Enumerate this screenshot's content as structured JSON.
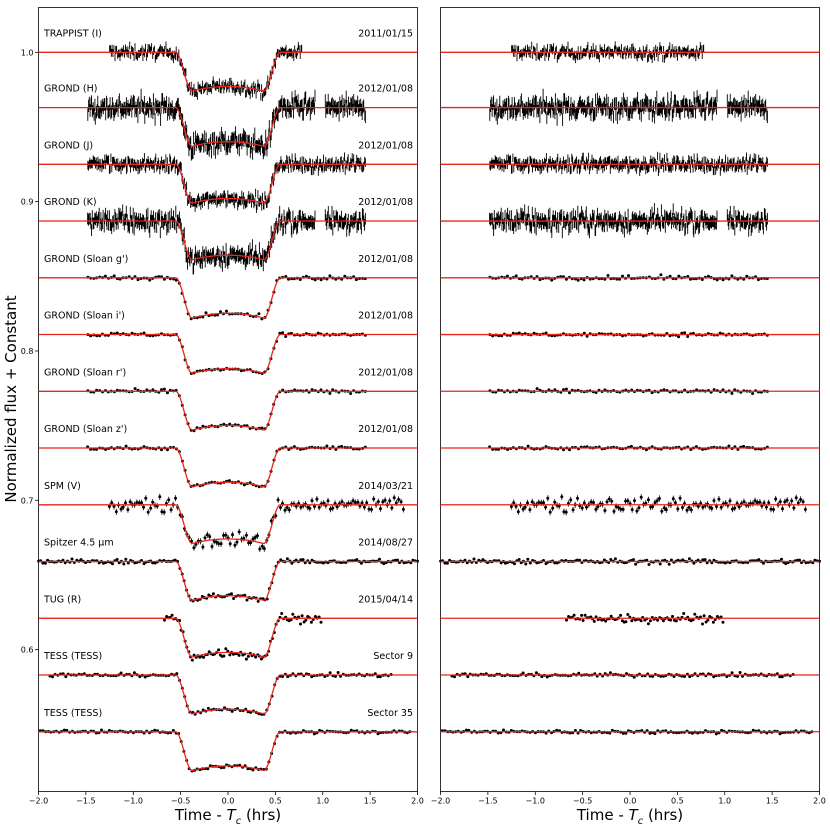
{
  "figure": {
    "ylabel": "Normalized flux + Constant",
    "xlabel_left": "Time - T_c (hrs)",
    "xlabel_right": "Time - T_c (hrs)"
  },
  "chart_data": {
    "type": "scatter",
    "description_scale": "x in hours relative to transit center; y is normalized flux with a constant offset per light curve",
    "xlim": [
      -2.0,
      2.0
    ],
    "ylim": [
      0.505,
      1.03
    ],
    "xticks": [
      -2.0,
      -1.5,
      -1.0,
      -0.5,
      0.0,
      0.5,
      1.0,
      1.5,
      2.0
    ],
    "xtick_labels": [
      "−2.0",
      "−1.5",
      "−1.0",
      "−0.5",
      "0.0",
      "0.5",
      "1.0",
      "1.5",
      "2.0"
    ],
    "yticks": [
      1.0,
      0.9,
      0.8,
      0.7,
      0.6
    ],
    "ytick_labels": [
      "1.0",
      "0.9",
      "0.8",
      "0.7",
      "0.6"
    ],
    "grid": false,
    "panels": [
      "light curves with transit model",
      "residuals"
    ],
    "transit": {
      "half_duration_hrs": 0.55,
      "ingress_hrs": 0.17
    },
    "light_curves": [
      {
        "name": "TRAPPIST (I)",
        "date": "2011/01/15",
        "baseline": 1.0,
        "depth": 0.026,
        "x_range": [
          -1.25,
          0.78
        ],
        "n_points": 220,
        "noise": 0.002,
        "style": "dense"
      },
      {
        "name": "GROND (H)",
        "date": "2012/01/08",
        "baseline": 0.963,
        "depth": 0.026,
        "x_range": [
          -1.48,
          1.45
        ],
        "n_points": 360,
        "noise": 0.0032,
        "gap": [
          0.92,
          1.02
        ],
        "style": "dense"
      },
      {
        "name": "GROND (J)",
        "date": "2012/01/08",
        "baseline": 0.925,
        "depth": 0.026,
        "x_range": [
          -1.48,
          1.45
        ],
        "n_points": 360,
        "noise": 0.0022,
        "style": "dense"
      },
      {
        "name": "GROND (K)",
        "date": "2012/01/08",
        "baseline": 0.887,
        "depth": 0.026,
        "x_range": [
          -1.48,
          1.45
        ],
        "n_points": 360,
        "noise": 0.003,
        "gap": [
          0.92,
          1.02
        ],
        "style": "dense"
      },
      {
        "name": "GROND (Sloan g')",
        "date": "2012/01/08",
        "baseline": 0.849,
        "depth": 0.027,
        "x_range": [
          -1.48,
          1.45
        ],
        "n_points": 95,
        "noise": 0.0007,
        "style": "dots"
      },
      {
        "name": "GROND (Sloan i')",
        "date": "2012/01/08",
        "baseline": 0.811,
        "depth": 0.026,
        "x_range": [
          -1.48,
          1.45
        ],
        "n_points": 95,
        "noise": 0.0006,
        "style": "dots"
      },
      {
        "name": "GROND (Sloan r')",
        "date": "2012/01/08",
        "baseline": 0.773,
        "depth": 0.026,
        "x_range": [
          -1.48,
          1.45
        ],
        "n_points": 95,
        "noise": 0.0006,
        "style": "dots"
      },
      {
        "name": "GROND (Sloan z')",
        "date": "2012/01/08",
        "baseline": 0.735,
        "depth": 0.026,
        "x_range": [
          -1.48,
          1.45
        ],
        "n_points": 95,
        "noise": 0.0006,
        "style": "dots"
      },
      {
        "name": "SPM (V)",
        "date": "2014/03/21",
        "baseline": 0.697,
        "depth": 0.026,
        "x_range": [
          -1.25,
          1.85
        ],
        "n_points": 130,
        "noise": 0.0026,
        "style": "errorbars"
      },
      {
        "name": "Spitzer 4.5 μm",
        "date": "2014/08/27",
        "baseline": 0.659,
        "depth": 0.026,
        "x_range": [
          -2.0,
          2.0
        ],
        "n_points": 170,
        "noise": 0.0008,
        "style": "dots"
      },
      {
        "name": "TUG (R)",
        "date": "2015/04/14",
        "baseline": 0.621,
        "depth": 0.026,
        "x_range": [
          -0.67,
          0.98
        ],
        "n_points": 85,
        "noise": 0.0016,
        "style": "dots"
      },
      {
        "name": "TESS (TESS)",
        "date": "Sector 9",
        "baseline": 0.583,
        "depth": 0.026,
        "x_range": [
          -1.88,
          1.72
        ],
        "n_points": 130,
        "noise": 0.0006,
        "style": "dots"
      },
      {
        "name": "TESS (TESS)",
        "date": "Sector 35",
        "baseline": 0.545,
        "depth": 0.026,
        "x_range": [
          -1.98,
          1.92
        ],
        "n_points": 140,
        "noise": 0.0006,
        "style": "dots"
      }
    ]
  }
}
